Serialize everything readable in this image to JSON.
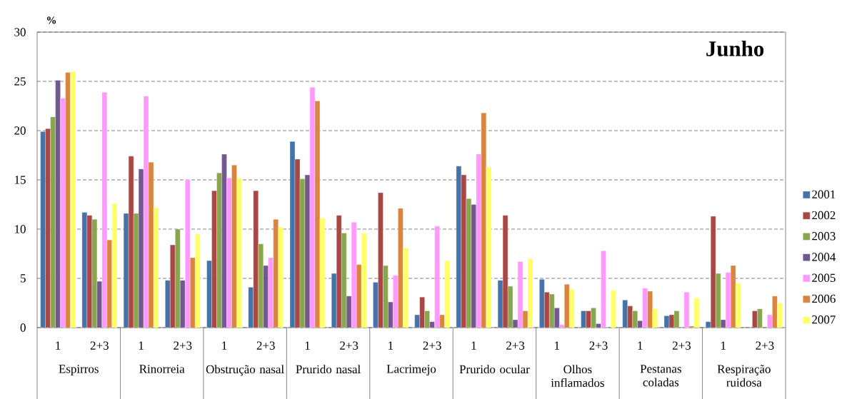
{
  "chart_data": {
    "type": "bar",
    "title": "Junho",
    "ylabel": "%",
    "categories": [
      "1",
      "2+3",
      "1",
      "2+3",
      "1",
      "2+3",
      "1",
      "2+3",
      "1",
      "2+3",
      "1",
      "2+3",
      "1",
      "2+3",
      "1",
      "2+3",
      "1",
      "2+3"
    ],
    "annotations": [
      "Espirros",
      "Rinorreia",
      "Obstrução nasal",
      "Prurido nasal",
      "Lacrimejo",
      "Prurido ocular",
      "Olhos inflamados",
      "Pestanas coladas",
      "Respiração ruidosa"
    ],
    "series": [
      {
        "name": "2001",
        "color": "#4572a7",
        "values": [
          19.9,
          11.7,
          11.6,
          4.8,
          6.8,
          4.1,
          18.9,
          5.5,
          4.6,
          1.3,
          16.4,
          4.8,
          4.9,
          1.7,
          2.8,
          1.2,
          0.6,
          null
        ]
      },
      {
        "name": "2002",
        "color": "#aa4643",
        "values": [
          20.2,
          11.4,
          17.4,
          8.4,
          13.9,
          13.9,
          17.1,
          11.4,
          13.7,
          3.1,
          15.5,
          11.4,
          3.6,
          1.7,
          2.2,
          1.3,
          11.3,
          1.7
        ]
      },
      {
        "name": "2003",
        "color": "#89a54e",
        "values": [
          21.4,
          11.0,
          11.6,
          10.0,
          15.7,
          8.5,
          15.1,
          9.6,
          6.3,
          1.7,
          13.1,
          4.2,
          3.4,
          2.0,
          1.7,
          1.7,
          5.5,
          1.9
        ]
      },
      {
        "name": "2004",
        "color": "#71588f",
        "values": [
          25.1,
          4.7,
          16.1,
          4.8,
          17.6,
          6.3,
          15.5,
          3.2,
          2.6,
          0.6,
          12.5,
          0.8,
          2.0,
          0.4,
          0.7,
          null,
          0.8,
          null
        ]
      },
      {
        "name": "2005",
        "color": "#ff99ff",
        "values": [
          23.3,
          23.9,
          23.5,
          15.0,
          15.2,
          7.1,
          24.4,
          10.7,
          5.3,
          10.3,
          17.6,
          6.7,
          0.3,
          7.8,
          4.0,
          3.6,
          5.6,
          1.3
        ]
      },
      {
        "name": "2006",
        "color": "#db843d",
        "values": [
          25.9,
          8.9,
          16.8,
          7.1,
          16.5,
          11.0,
          23.0,
          6.4,
          12.1,
          1.3,
          21.8,
          1.7,
          4.4,
          null,
          3.7,
          0.15,
          6.3,
          3.2
        ]
      },
      {
        "name": "2007",
        "color": "#ffff66",
        "values": [
          26.0,
          12.6,
          12.2,
          9.5,
          15.2,
          10.2,
          11.1,
          9.6,
          8.1,
          6.8,
          16.3,
          7.0,
          3.9,
          3.8,
          1.9,
          3.0,
          4.5,
          2.5
        ]
      }
    ],
    "ylim": [
      0,
      30
    ],
    "yticks": [
      0,
      5,
      10,
      15,
      20,
      25,
      30
    ],
    "grid": "y",
    "legend": "right"
  }
}
